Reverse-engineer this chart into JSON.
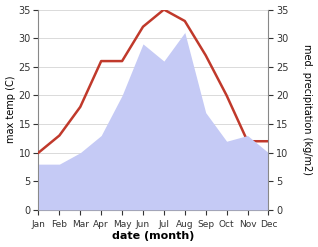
{
  "months": [
    "Jan",
    "Feb",
    "Mar",
    "Apr",
    "May",
    "Jun",
    "Jul",
    "Aug",
    "Sep",
    "Oct",
    "Nov",
    "Dec"
  ],
  "temperature": [
    10,
    13,
    18,
    26,
    26,
    32,
    35,
    33,
    27,
    20,
    12,
    12
  ],
  "precipitation": [
    8,
    8,
    10,
    13,
    20,
    29,
    26,
    31,
    17,
    12,
    13,
    10
  ],
  "temp_color": "#c0392b",
  "precip_fill_color": "#c5caf5",
  "temp_ylim": [
    0,
    35
  ],
  "precip_ylim": [
    0,
    35
  ],
  "xlabel": "date (month)",
  "ylabel_left": "max temp (C)",
  "ylabel_right": "med. precipitation (kg/m2)",
  "temp_linewidth": 1.8,
  "tick_fontsize": 7,
  "xlabel_fontsize": 8,
  "ylabel_fontsize": 7,
  "month_fontsize": 6.5
}
